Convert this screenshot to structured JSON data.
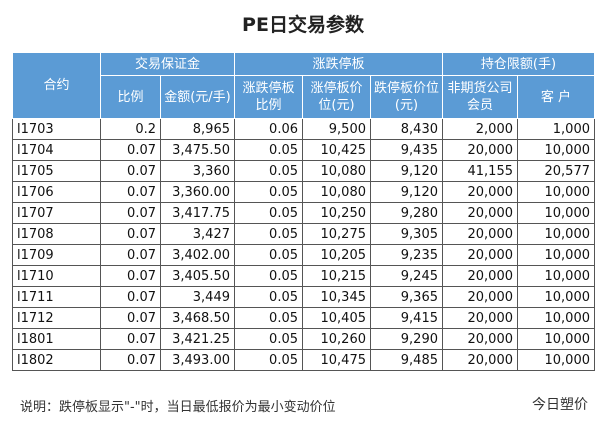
{
  "title": "PE日交易参数",
  "table": {
    "groups": [
      "合约",
      "交易保证金",
      "涨跌停板",
      "持仓限额(手)"
    ],
    "subheaders": [
      "比例",
      "金额(元/手)",
      "涨跌停板比例",
      "涨停板价位(元)",
      "跌停板价位(元)",
      "非期货公司会员",
      "客 户"
    ],
    "rows": [
      [
        "l1703",
        "0.2",
        "8,965",
        "0.06",
        "9,500",
        "8,430",
        "2,000",
        "1,000"
      ],
      [
        "l1704",
        "0.07",
        "3,475.50",
        "0.05",
        "10,425",
        "9,435",
        "20,000",
        "10,000"
      ],
      [
        "l1705",
        "0.07",
        "3,360",
        "0.05",
        "10,080",
        "9,120",
        "41,155",
        "20,577"
      ],
      [
        "l1706",
        "0.07",
        "3,360.00",
        "0.05",
        "10,080",
        "9,120",
        "20,000",
        "10,000"
      ],
      [
        "l1707",
        "0.07",
        "3,417.75",
        "0.05",
        "10,250",
        "9,280",
        "20,000",
        "10,000"
      ],
      [
        "l1708",
        "0.07",
        "3,427",
        "0.05",
        "10,275",
        "9,305",
        "20,000",
        "10,000"
      ],
      [
        "l1709",
        "0.07",
        "3,402.00",
        "0.05",
        "10,205",
        "9,235",
        "20,000",
        "10,000"
      ],
      [
        "l1710",
        "0.07",
        "3,405.50",
        "0.05",
        "10,215",
        "9,245",
        "20,000",
        "10,000"
      ],
      [
        "l1711",
        "0.07",
        "3,449",
        "0.05",
        "10,345",
        "9,365",
        "20,000",
        "10,000"
      ],
      [
        "l1712",
        "0.07",
        "3,468.50",
        "0.05",
        "10,405",
        "9,415",
        "20,000",
        "10,000"
      ],
      [
        "l1801",
        "0.07",
        "3,421.25",
        "0.05",
        "10,260",
        "9,290",
        "20,000",
        "10,000"
      ],
      [
        "l1802",
        "0.07",
        "3,493.00",
        "0.05",
        "10,475",
        "9,485",
        "20,000",
        "10,000"
      ]
    ]
  },
  "note": "说明：跌停板显示\"-\"时，当日最低报价为最小变动价位",
  "logo": "今日塑价"
}
